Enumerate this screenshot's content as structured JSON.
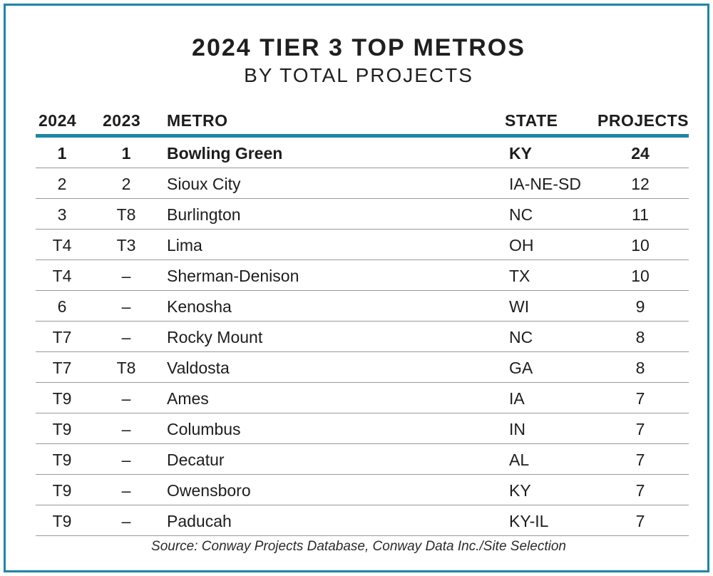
{
  "chart_data": {
    "type": "table",
    "title": "2024 TIER 3 TOP METROS",
    "subtitle": "BY TOTAL PROJECTS",
    "columns": [
      "2024",
      "2023",
      "METRO",
      "STATE",
      "PROJECTS"
    ],
    "rows": [
      {
        "rank_2024": "1",
        "rank_2023": "1",
        "metro": "Bowling Green",
        "state": "KY",
        "projects": 24
      },
      {
        "rank_2024": "2",
        "rank_2023": "2",
        "metro": "Sioux City",
        "state": "IA-NE-SD",
        "projects": 12
      },
      {
        "rank_2024": "3",
        "rank_2023": "T8",
        "metro": "Burlington",
        "state": "NC",
        "projects": 11
      },
      {
        "rank_2024": "T4",
        "rank_2023": "T3",
        "metro": "Lima",
        "state": "OH",
        "projects": 10
      },
      {
        "rank_2024": "T4",
        "rank_2023": "–",
        "metro": "Sherman-Denison",
        "state": "TX",
        "projects": 10
      },
      {
        "rank_2024": "6",
        "rank_2023": "–",
        "metro": "Kenosha",
        "state": "WI",
        "projects": 9
      },
      {
        "rank_2024": "T7",
        "rank_2023": "–",
        "metro": "Rocky Mount",
        "state": "NC",
        "projects": 8
      },
      {
        "rank_2024": "T7",
        "rank_2023": "T8",
        "metro": "Valdosta",
        "state": "GA",
        "projects": 8
      },
      {
        "rank_2024": "T9",
        "rank_2023": "–",
        "metro": "Ames",
        "state": "IA",
        "projects": 7
      },
      {
        "rank_2024": "T9",
        "rank_2023": "–",
        "metro": "Columbus",
        "state": "IN",
        "projects": 7
      },
      {
        "rank_2024": "T9",
        "rank_2023": "–",
        "metro": "Decatur",
        "state": "AL",
        "projects": 7
      },
      {
        "rank_2024": "T9",
        "rank_2023": "–",
        "metro": "Owensboro",
        "state": "KY",
        "projects": 7
      },
      {
        "rank_2024": "T9",
        "rank_2023": "–",
        "metro": "Paducah",
        "state": "KY-IL",
        "projects": 7
      }
    ],
    "source": "Source: Conway Projects Database, Conway Data Inc./Site Selection"
  },
  "colors": {
    "accent": "#1d86a4",
    "text": "#1d1d1d",
    "row_divider": "#9a9a9a"
  }
}
